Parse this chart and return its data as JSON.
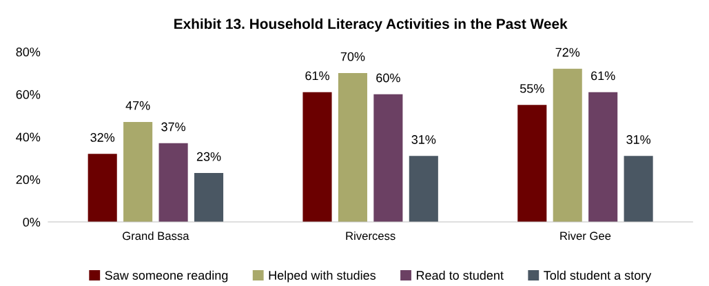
{
  "chart_data": {
    "type": "bar",
    "title": "Exhibit 13. Household Literacy Activities in the Past Week",
    "categories": [
      "Grand Bassa",
      "Rivercess",
      "River Gee"
    ],
    "series": [
      {
        "name": "Saw someone reading",
        "color": "#6b0000",
        "values": [
          32,
          61,
          55
        ],
        "value_labels": [
          "32%",
          "61%",
          "55%"
        ]
      },
      {
        "name": "Helped with studies",
        "color": "#a9a96b",
        "values": [
          47,
          70,
          72
        ],
        "value_labels": [
          "47%",
          "70%",
          "72%"
        ]
      },
      {
        "name": "Read to student",
        "color": "#6b4063",
        "values": [
          37,
          60,
          61
        ],
        "value_labels": [
          "37%",
          "60%",
          "61%"
        ]
      },
      {
        "name": "Told student a story",
        "color": "#4a5763",
        "values": [
          23,
          31,
          31
        ],
        "value_labels": [
          "23%",
          "31%",
          "31%"
        ]
      }
    ],
    "ylim": [
      0,
      80
    ],
    "yticks": [
      {
        "value": 0,
        "label": "0%"
      },
      {
        "value": 20,
        "label": "20%"
      },
      {
        "value": 40,
        "label": "40%"
      },
      {
        "value": 60,
        "label": "60%"
      },
      {
        "value": 80,
        "label": "80%"
      }
    ],
    "grid": false,
    "legend": "bottom"
  }
}
